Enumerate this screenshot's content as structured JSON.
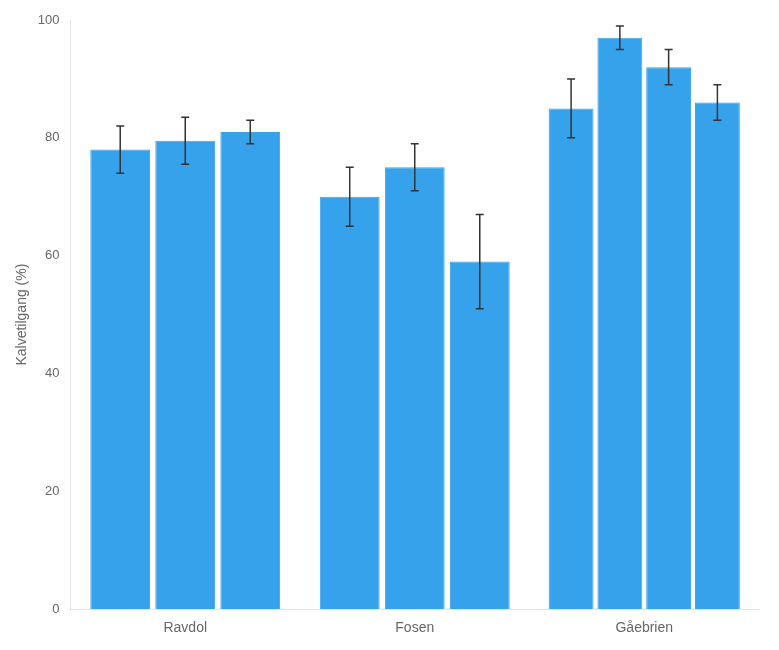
{
  "chart_data": {
    "type": "bar",
    "categories": [
      "Ravdol",
      "Fosen",
      "Gåebrien"
    ],
    "series": [
      {
        "values": [
          78,
          70,
          85
        ],
        "errors": [
          4,
          5,
          5
        ]
      },
      {
        "values": [
          79.5,
          75,
          97
        ],
        "errors": [
          4,
          4,
          2
        ]
      },
      {
        "values": [
          81,
          59,
          92
        ],
        "errors": [
          2,
          8,
          3
        ]
      },
      {
        "values": [
          null,
          null,
          86
        ],
        "errors": [
          null,
          null,
          3
        ]
      }
    ],
    "color": "#36a2eb",
    "ylabel": "Kalvetilgang (%)",
    "ylim": [
      0,
      100
    ],
    "yticks": [
      0,
      20,
      40,
      60,
      80,
      100
    ],
    "grid": false
  }
}
